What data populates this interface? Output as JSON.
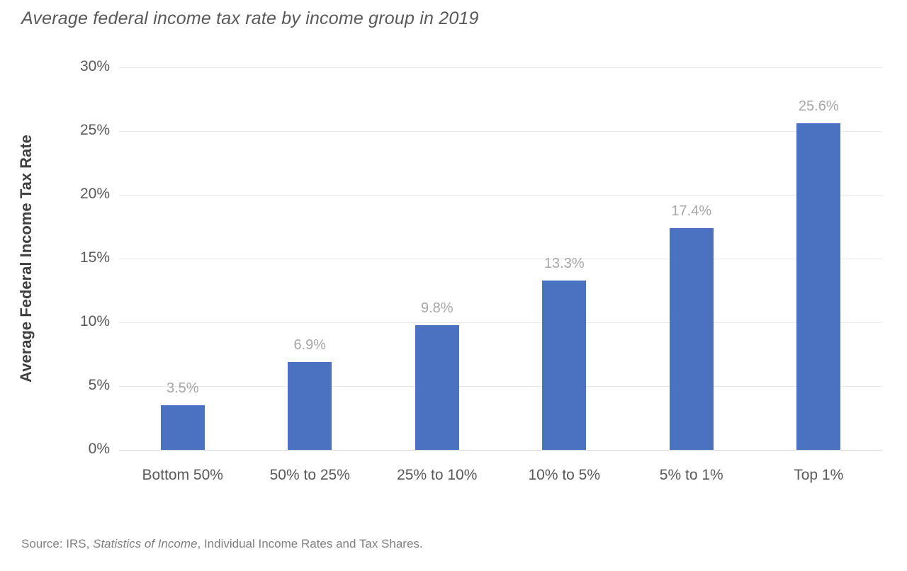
{
  "chart": {
    "title": "Average federal income tax rate by income group in 2019",
    "ylabel": "Average Federal Income Tax Rate",
    "source": {
      "prefix": "Source: IRS, ",
      "italic": "Statistics of Income",
      "suffix": ", Individual Income Rates and Tax Shares."
    }
  },
  "chart_data": {
    "type": "bar",
    "title": "Average federal income tax rate by income group in 2019",
    "categories": [
      "Bottom 50%",
      "50% to 25%",
      "25% to 10%",
      "10% to 5%",
      "5% to 1%",
      "Top 1%"
    ],
    "values": [
      3.5,
      6.9,
      9.8,
      13.3,
      17.4,
      25.6
    ],
    "value_labels": [
      "3.5%",
      "6.9%",
      "9.8%",
      "13.3%",
      "17.4%",
      "25.6%"
    ],
    "xlabel": "",
    "ylabel": "Average Federal Income Tax Rate",
    "ylim": [
      0,
      30
    ],
    "ytick_step": 5,
    "ytick_values": [
      0,
      5,
      10,
      15,
      20,
      25,
      30
    ],
    "ytick_labels": [
      "0%",
      "5%",
      "10%",
      "15%",
      "20%",
      "25%",
      "30%"
    ],
    "grid": true,
    "legend_position": "none",
    "colors": {
      "bar": "#4a72c0",
      "gridline": "#e9e9e9",
      "axis_line": "#d6d6d6",
      "value_label": "#a6a6a6",
      "tick_label": "#595959",
      "category_label": "#595959",
      "title": "#595959",
      "y_axis_title": "#404040",
      "source": "#7f7f7f"
    }
  }
}
